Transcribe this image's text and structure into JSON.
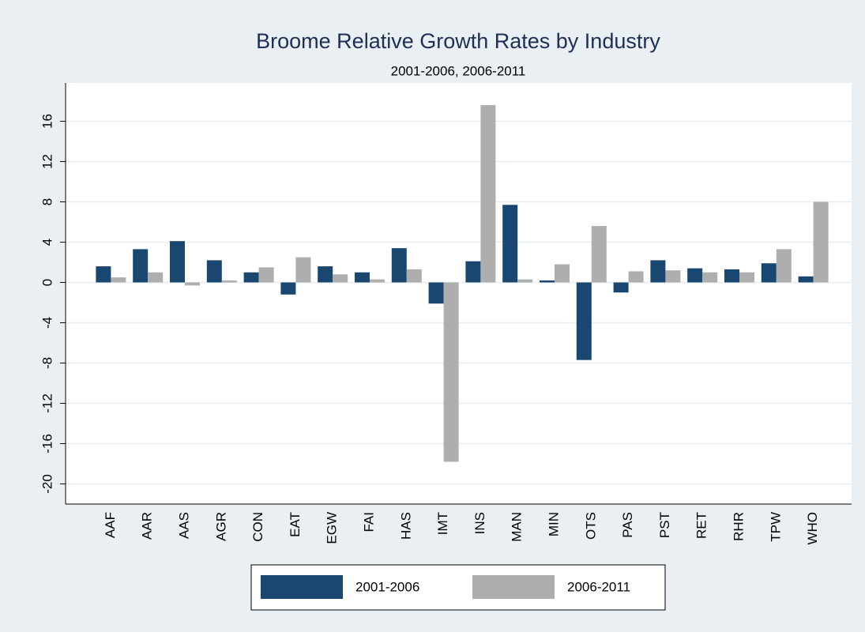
{
  "chart_data": {
    "type": "bar",
    "title": "Broome Relative Growth Rates by Industry",
    "subtitle": "2001-2006, 2006-2011",
    "categories": [
      "AAF",
      "AAR",
      "AAS",
      "AGR",
      "CON",
      "EAT",
      "EGW",
      "FAI",
      "HAS",
      "IMT",
      "INS",
      "MAN",
      "MIN",
      "OTS",
      "PAS",
      "PST",
      "RET",
      "RHR",
      "TPW",
      "WHO"
    ],
    "series": [
      {
        "name": "2001-2006",
        "color": "#1a476f",
        "values": [
          1.6,
          3.3,
          4.1,
          2.2,
          1.0,
          -1.2,
          1.6,
          1.0,
          3.4,
          -2.1,
          2.1,
          7.7,
          0.2,
          -7.7,
          -1.0,
          2.2,
          1.4,
          1.3,
          1.9,
          0.6
        ]
      },
      {
        "name": "2006-2011",
        "color": "#aeaeae",
        "values": [
          0.5,
          1.0,
          -0.3,
          0.2,
          1.5,
          2.5,
          0.8,
          0.3,
          1.3,
          -17.8,
          17.6,
          0.3,
          1.8,
          5.6,
          1.1,
          1.2,
          1.0,
          1.0,
          3.3,
          8.0
        ]
      }
    ],
    "ylim": [
      -22,
      19.8
    ],
    "yticks": [
      -20,
      -16,
      -12,
      -8,
      -4,
      0,
      4,
      8,
      12,
      16
    ],
    "grid": true
  }
}
